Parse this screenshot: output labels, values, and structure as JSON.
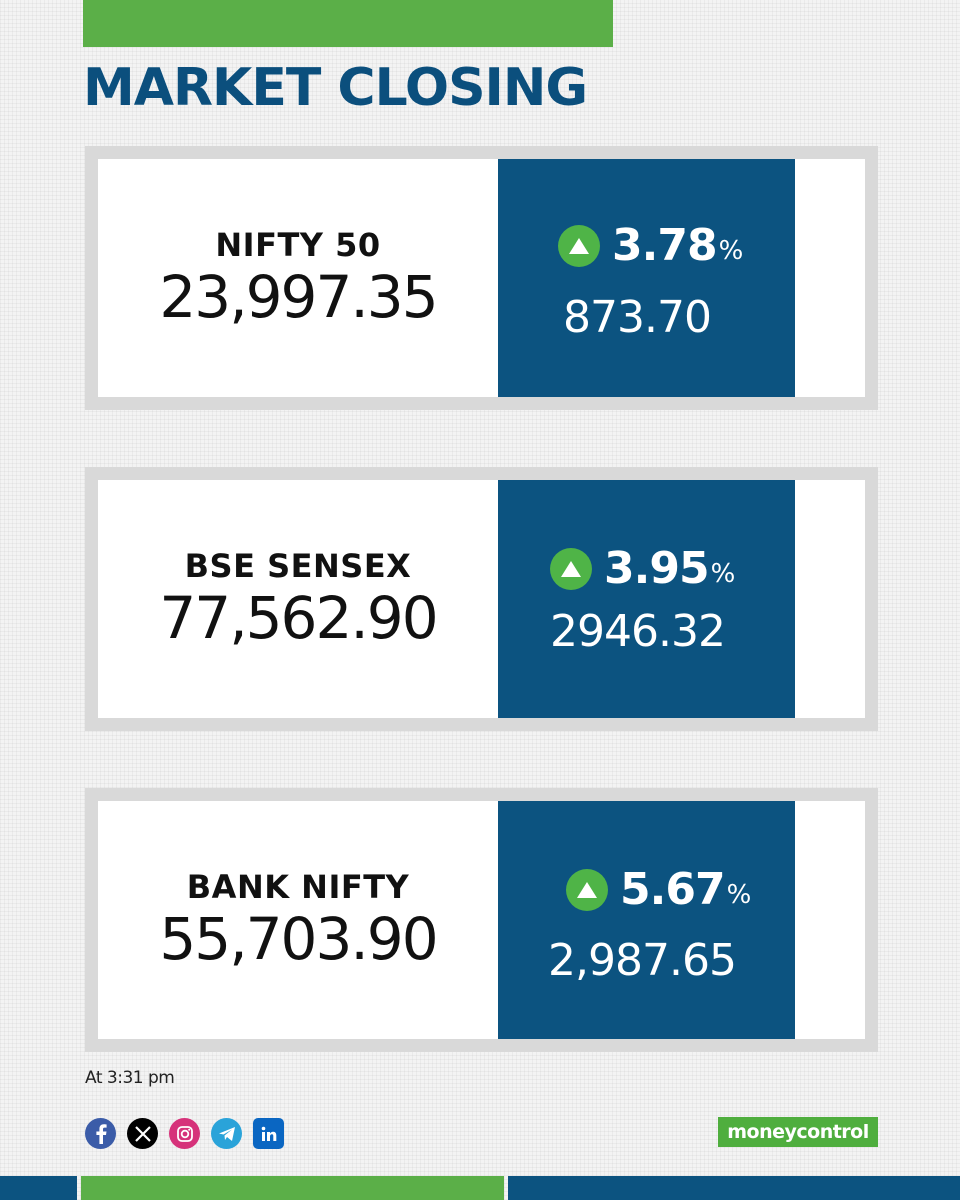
{
  "header": {
    "title": "MARKET CLOSING"
  },
  "indices": [
    {
      "name": "NIFTY 50",
      "value": "23,997.35",
      "change_pct": "3.78",
      "pct_sign": "%",
      "change_points": "873.70",
      "direction": "up"
    },
    {
      "name": "BSE SENSEX",
      "value": "77,562.90",
      "change_pct": "3.95",
      "pct_sign": "%",
      "change_points": "2946.32",
      "direction": "up"
    },
    {
      "name": "BANK NIFTY",
      "value": "55,703.90",
      "change_pct": "5.67",
      "pct_sign": "%",
      "change_points": "2,987.65",
      "direction": "up"
    }
  ],
  "footer": {
    "timestamp": "At 3:31 pm",
    "social_icons": [
      "facebook-icon",
      "x-icon",
      "instagram-icon",
      "telegram-icon",
      "linkedin-icon"
    ],
    "logo_text": "moneycontrol"
  },
  "colors": {
    "accent_green": "#5baf48",
    "brand_blue": "#0c5380",
    "title_blue": "#0b4f7d",
    "up_green": "#4fb447"
  }
}
